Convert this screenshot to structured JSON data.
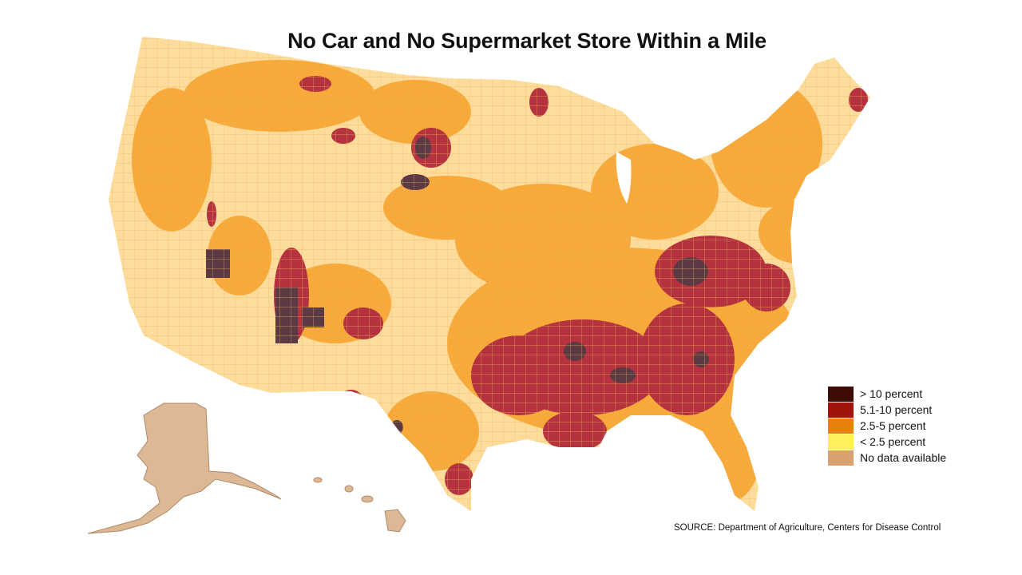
{
  "title": "No Car and No Supermarket Store Within a Mile",
  "legend": [
    {
      "label": "> 10 percent",
      "color": "#3d0c06"
    },
    {
      "label": "5.1-10 percent",
      "color": "#a0140c"
    },
    {
      "label": "2.5-5 percent",
      "color": "#e6820c"
    },
    {
      "label": "< 2.5 percent",
      "color": "#ffef5a"
    },
    {
      "label": "No data available",
      "color": "#d9a070"
    }
  ],
  "source": "SOURCE: Department of Agriculture, Centers for Disease Control",
  "map_colors": {
    "low": "#fddc9c",
    "mid": "#f7a93a",
    "high": "#b5333e",
    "very_high": "#5b3a44",
    "alaska_hawaii": "#dcb894"
  }
}
